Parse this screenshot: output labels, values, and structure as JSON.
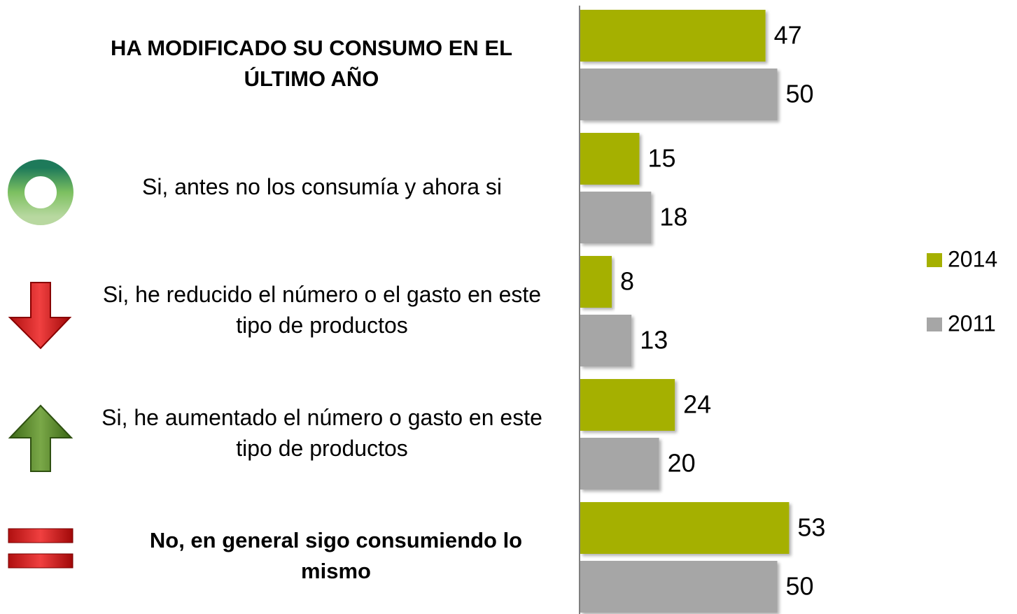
{
  "chart_data": {
    "type": "bar",
    "orientation": "horizontal",
    "categories": [
      "HA MODIFICADO SU CONSUMO EN EL ÚLTIMO AÑO",
      "Si, antes no los consumía y ahora si",
      "Si, he reducido el número o el gasto en este tipo de productos",
      "Si, he aumentado el número o gasto en este tipo de productos",
      "No, en general sigo consumiendo lo mismo"
    ],
    "series": [
      {
        "name": "2014",
        "color": "#a5b000",
        "values": [
          47,
          15,
          8,
          24,
          53
        ]
      },
      {
        "name": "2011",
        "color": "#a6a6a6",
        "values": [
          50,
          18,
          13,
          20,
          50
        ]
      }
    ],
    "xlim": [
      0,
      100
    ],
    "legend": "right"
  }
}
